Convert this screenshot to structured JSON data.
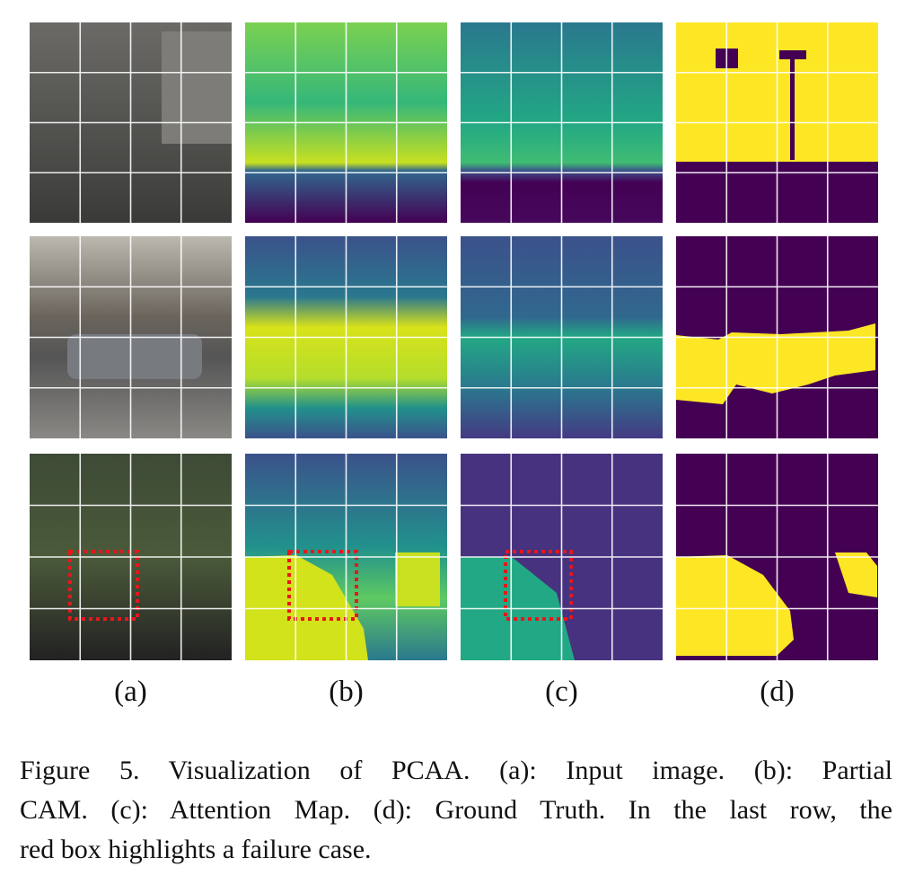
{
  "figure": {
    "panel_labels": [
      "(a)",
      "(b)",
      "(c)",
      "(d)"
    ],
    "caption_lines": [
      "Figure 5.  Visualization of PCAA. (a): Input image.  (b): Partial",
      "CAM. (c): Attention Map. (d): Ground Truth. In the last row, the",
      "red box highlights a failure case."
    ]
  }
}
